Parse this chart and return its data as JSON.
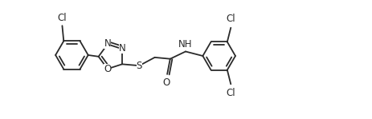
{
  "bg_color": "#ffffff",
  "line_color": "#2a2a2a",
  "text_color": "#2a2a2a",
  "line_width": 1.3,
  "font_size": 8.5,
  "figsize": [
    4.63,
    1.49
  ],
  "dpi": 100,
  "xlim": [
    0,
    10.0
  ],
  "ylim": [
    -1.8,
    2.2
  ]
}
